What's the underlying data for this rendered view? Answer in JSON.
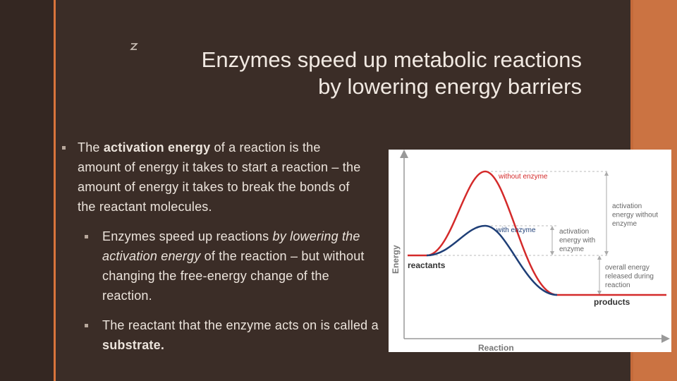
{
  "slide": {
    "title": [
      "Enzymes speed up metabolic reactions",
      "by lowering energy barriers"
    ],
    "bullets": [
      {
        "level": 1,
        "runs": [
          {
            "text": "The "
          },
          {
            "text": "activation energy",
            "bold": true
          },
          {
            "text": " of a reaction is the amount of energy it takes to start a reaction – the amount of energy it takes to break the bonds of the reactant molecules."
          }
        ]
      },
      {
        "level": 2,
        "runs": [
          {
            "text": "Enzymes speed up reactions "
          },
          {
            "text": "by lowering the activation energy",
            "italic": true
          },
          {
            "text": " of the reaction – but without changing the free-energy change of the reaction."
          }
        ]
      },
      {
        "level": 2,
        "runs": [
          {
            "text": "The reactant that the enzyme acts on is called a "
          },
          {
            "text": "substrate.",
            "bold": true
          }
        ]
      }
    ],
    "diagram": {
      "y_axis": "Energy",
      "x_axis": "Reaction",
      "without_enzyme": "without enzyme",
      "with_enzyme": "with enzyme",
      "reactants": "reactants",
      "products": "products",
      "activation_without": [
        "activation",
        "energy without",
        "enzyme"
      ],
      "activation_with": [
        "activation",
        "energy with",
        "enzyme"
      ],
      "overall": [
        "overall energy",
        "released during",
        "reaction"
      ]
    }
  }
}
